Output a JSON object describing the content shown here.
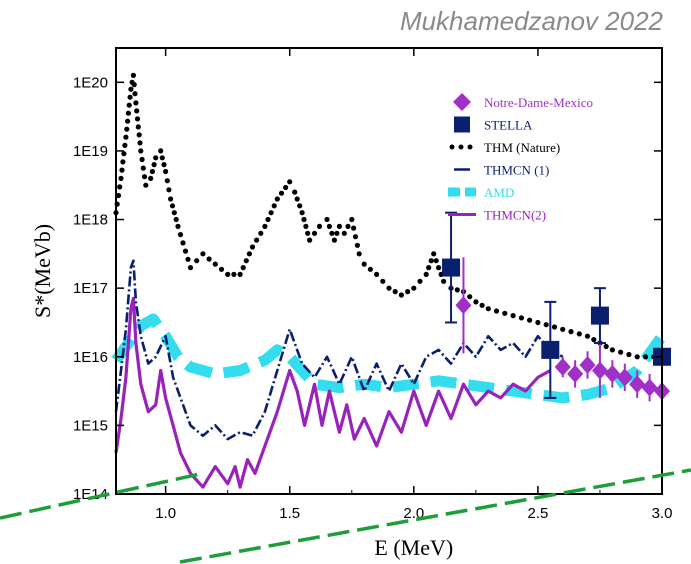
{
  "credit": "Mukhamedzanov 2022",
  "colors": {
    "thm": "#000000",
    "thmcn1": "#0a1f6e",
    "amd": "#33ddee",
    "thmcn2": "#9922bb",
    "nd_mexico": "#a030c8",
    "stella": "#0a1f6e",
    "overlay_line": "#1e9e3a"
  },
  "chart_data": {
    "type": "line",
    "title": "",
    "xlabel": "E (MeV)",
    "ylabel": "S*(MeVb)",
    "xlim": [
      0.8,
      3.0
    ],
    "ylim_log10": [
      14,
      20.5
    ],
    "y_scale": "log",
    "grid": false,
    "legend_position": "top-right",
    "x_ticks": [
      1.0,
      1.5,
      2.0,
      2.5,
      3.0
    ],
    "x_tick_labels": [
      "1.0",
      "1.5",
      "2.0",
      "2.5",
      "3.0"
    ],
    "y_ticks_log10": [
      14,
      15,
      16,
      17,
      18,
      19,
      20
    ],
    "y_tick_labels": [
      "1E14",
      "1E15",
      "1E16",
      "1E17",
      "1E18",
      "1E19",
      "1E20"
    ],
    "series": [
      {
        "name": "Notre-Dame-Mexico",
        "marker": "diamond",
        "x": [
          2.2,
          2.6,
          2.65,
          2.7,
          2.75,
          2.8,
          2.85,
          2.9,
          2.95,
          3.0
        ],
        "log10_y": [
          16.75,
          15.85,
          15.75,
          15.88,
          15.8,
          15.75,
          15.7,
          15.6,
          15.55,
          15.5
        ],
        "log10_err": [
          0.7,
          0.15,
          0.2,
          0.2,
          0.4,
          0.2,
          0.2,
          0.2,
          0.2,
          0.2
        ]
      },
      {
        "name": "STELLA",
        "marker": "square",
        "x": [
          2.15,
          2.55,
          2.75,
          3.0
        ],
        "log10_y": [
          17.3,
          16.1,
          16.6,
          16.0
        ],
        "log10_err": [
          0.8,
          0.7,
          0.4,
          0.1
        ]
      },
      {
        "name": "THM  (Nature)",
        "style": "dotted",
        "x": [
          0.8,
          0.82,
          0.84,
          0.86,
          0.87,
          0.88,
          0.9,
          0.92,
          0.94,
          0.96,
          0.98,
          1.0,
          1.02,
          1.05,
          1.1,
          1.15,
          1.2,
          1.25,
          1.3,
          1.35,
          1.4,
          1.45,
          1.5,
          1.52,
          1.55,
          1.58,
          1.62,
          1.65,
          1.68,
          1.7,
          1.72,
          1.75,
          1.78,
          1.8,
          1.85,
          1.9,
          1.95,
          2.0,
          2.05,
          2.08,
          2.1,
          2.12,
          2.15,
          2.2,
          2.25,
          2.3,
          2.4,
          2.5,
          2.6,
          2.7,
          2.8,
          2.9,
          3.0
        ],
        "log10_y": [
          18.1,
          18.6,
          19.2,
          19.9,
          20.1,
          19.7,
          19.0,
          18.5,
          18.6,
          18.9,
          19.0,
          18.7,
          18.3,
          17.9,
          17.3,
          17.5,
          17.35,
          17.2,
          17.2,
          17.6,
          17.9,
          18.3,
          18.55,
          18.4,
          18.1,
          17.7,
          17.9,
          18.0,
          17.7,
          17.9,
          17.8,
          18.0,
          17.5,
          17.35,
          17.2,
          17.0,
          16.9,
          17.0,
          17.2,
          17.5,
          17.3,
          17.1,
          17.0,
          16.95,
          16.8,
          16.7,
          16.6,
          16.5,
          16.4,
          16.3,
          16.1,
          16.0,
          16.0
        ]
      },
      {
        "name": "THMCN (1)",
        "style": "dash-dot",
        "x": [
          0.8,
          0.82,
          0.84,
          0.86,
          0.87,
          0.88,
          0.9,
          0.93,
          0.96,
          1.0,
          1.03,
          1.06,
          1.1,
          1.15,
          1.2,
          1.25,
          1.3,
          1.35,
          1.4,
          1.45,
          1.5,
          1.55,
          1.6,
          1.65,
          1.7,
          1.75,
          1.8,
          1.85,
          1.9,
          1.95,
          2.0,
          2.05,
          2.1,
          2.15,
          2.2,
          2.25,
          2.3,
          2.35,
          2.4,
          2.45,
          2.5,
          2.55,
          2.6
        ],
        "log10_y": [
          15.2,
          15.8,
          16.4,
          17.3,
          17.4,
          16.8,
          16.3,
          15.9,
          16.0,
          16.3,
          15.7,
          15.4,
          15.0,
          14.85,
          15.0,
          14.8,
          14.9,
          14.85,
          15.2,
          15.8,
          16.4,
          15.9,
          15.7,
          16.0,
          15.6,
          16.0,
          15.5,
          15.9,
          15.5,
          15.9,
          15.6,
          16.0,
          16.1,
          15.9,
          16.2,
          16.0,
          16.3,
          16.1,
          16.2,
          16.0,
          16.3,
          16.1,
          16.0
        ]
      },
      {
        "name": "AMD",
        "style": "dashed-thick",
        "x": [
          0.8,
          0.85,
          0.9,
          0.95,
          1.0,
          1.05,
          1.1,
          1.2,
          1.3,
          1.4,
          1.45,
          1.5,
          1.55,
          1.6,
          1.7,
          1.8,
          1.9,
          2.0,
          2.1,
          2.2,
          2.3,
          2.4,
          2.5,
          2.6,
          2.7,
          2.8,
          2.9,
          3.0
        ],
        "log10_y": [
          15.95,
          16.2,
          16.45,
          16.55,
          16.3,
          16.0,
          15.85,
          15.75,
          15.8,
          15.95,
          16.1,
          16.0,
          15.8,
          15.6,
          15.55,
          15.6,
          15.55,
          15.6,
          15.65,
          15.6,
          15.55,
          15.5,
          15.45,
          15.4,
          15.45,
          15.55,
          15.8,
          16.3
        ]
      },
      {
        "name": "THMCN(2)",
        "style": "solid",
        "x": [
          0.8,
          0.82,
          0.84,
          0.86,
          0.87,
          0.88,
          0.9,
          0.93,
          0.96,
          0.98,
          1.0,
          1.03,
          1.06,
          1.1,
          1.15,
          1.2,
          1.25,
          1.28,
          1.3,
          1.33,
          1.36,
          1.4,
          1.45,
          1.5,
          1.53,
          1.56,
          1.6,
          1.63,
          1.66,
          1.7,
          1.73,
          1.76,
          1.8,
          1.85,
          1.9,
          1.95,
          2.0,
          2.05,
          2.1,
          2.15,
          2.2,
          2.25,
          2.3,
          2.35,
          2.4,
          2.45,
          2.5,
          2.55
        ],
        "log10_y": [
          14.6,
          15.1,
          15.7,
          16.7,
          16.85,
          16.2,
          15.6,
          15.2,
          15.3,
          15.8,
          15.4,
          15.0,
          14.6,
          14.3,
          14.1,
          14.4,
          14.15,
          14.4,
          14.1,
          14.5,
          14.3,
          14.7,
          15.2,
          15.8,
          15.5,
          15.0,
          15.6,
          15.0,
          15.5,
          14.9,
          15.3,
          14.8,
          15.1,
          14.7,
          15.2,
          14.9,
          15.5,
          15.0,
          15.5,
          15.1,
          15.6,
          15.3,
          15.5,
          15.4,
          15.6,
          15.5,
          15.7,
          15.8
        ]
      }
    ]
  }
}
